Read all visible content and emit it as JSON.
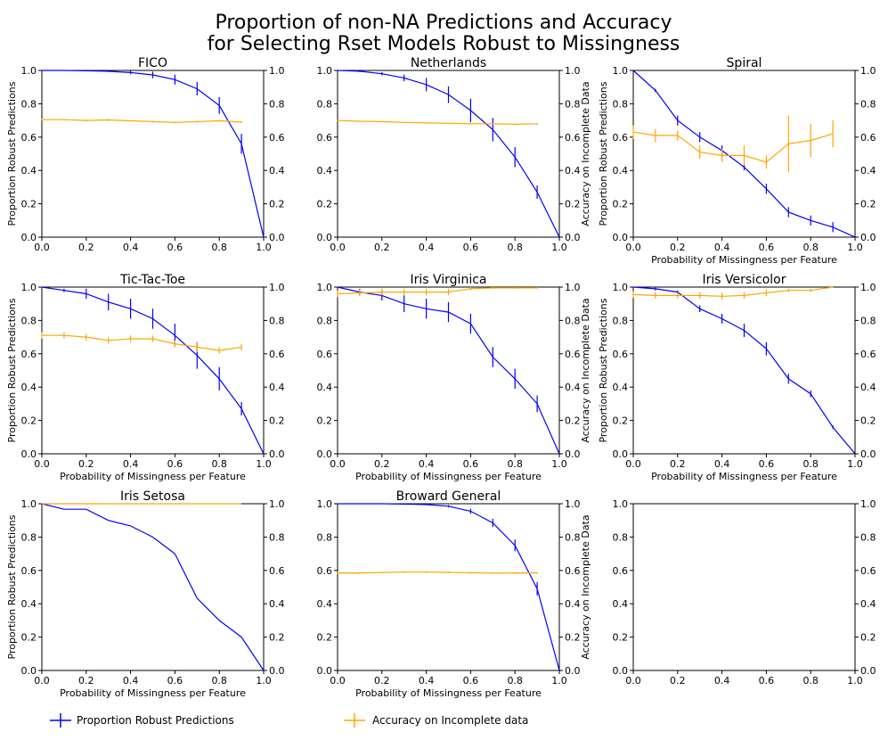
{
  "figure": {
    "title_line1": "Proportion of non-NA Predictions and Accuracy",
    "title_line2": "for Selecting Rset Models Robust to Missingness",
    "colors": {
      "robust": "#0000ff",
      "accuracy": "#ffa500"
    },
    "legend": {
      "robust_label": "Proportion Robust Predictions",
      "accuracy_label": "Accuracy on Incomplete data"
    },
    "tick_labels": [
      "0.0",
      "0.2",
      "0.4",
      "0.6",
      "0.8",
      "1.0"
    ]
  },
  "chart_data": [
    {
      "type": "line",
      "title": "FICO",
      "xlabel": "",
      "ylabel": "Proportion Robust Predictions",
      "ylabel_right": "",
      "xlim": [
        0,
        1
      ],
      "ylim": [
        0,
        1
      ],
      "series": [
        {
          "name": "Proportion Robust Predictions",
          "x": [
            0,
            0.1,
            0.2,
            0.3,
            0.4,
            0.5,
            0.6,
            0.7,
            0.8,
            0.9,
            1.0
          ],
          "y": [
            1.0,
            1.0,
            0.998,
            0.995,
            0.987,
            0.973,
            0.945,
            0.89,
            0.79,
            0.56,
            0.0
          ],
          "err": [
            0,
            0,
            0,
            0.005,
            0.01,
            0.02,
            0.03,
            0.04,
            0.05,
            0.06,
            0
          ]
        },
        {
          "name": "Accuracy on Incomplete data",
          "x": [
            0,
            0.1,
            0.2,
            0.3,
            0.4,
            0.5,
            0.6,
            0.7,
            0.8,
            0.9
          ],
          "y": [
            0.705,
            0.705,
            0.7,
            0.703,
            0.698,
            0.693,
            0.688,
            0.693,
            0.698,
            0.69
          ],
          "err": [
            0.005,
            0.005,
            0.005,
            0.007,
            0.005,
            0.005,
            0.005,
            0.005,
            0.005,
            0.005
          ]
        }
      ]
    },
    {
      "type": "line",
      "title": "Netherlands",
      "xlabel": "",
      "ylabel": "",
      "ylabel_right": "Accuracy on Incomplete Data",
      "xlim": [
        0,
        1
      ],
      "ylim": [
        0,
        1
      ],
      "series": [
        {
          "name": "Proportion Robust Predictions",
          "x": [
            0,
            0.1,
            0.2,
            0.3,
            0.4,
            0.5,
            0.6,
            0.7,
            0.8,
            0.9,
            1.0
          ],
          "y": [
            1.0,
            0.995,
            0.98,
            0.955,
            0.915,
            0.855,
            0.76,
            0.645,
            0.48,
            0.27,
            0.0
          ],
          "err": [
            0,
            0.005,
            0.01,
            0.02,
            0.04,
            0.05,
            0.07,
            0.07,
            0.06,
            0.04,
            0
          ]
        },
        {
          "name": "Accuracy on Incomplete data",
          "x": [
            0,
            0.1,
            0.2,
            0.3,
            0.4,
            0.5,
            0.6,
            0.7,
            0.8,
            0.9
          ],
          "y": [
            0.7,
            0.695,
            0.693,
            0.688,
            0.685,
            0.683,
            0.68,
            0.68,
            0.677,
            0.68
          ],
          "err": [
            0.003,
            0.003,
            0.003,
            0.003,
            0.003,
            0.003,
            0.005,
            0.005,
            0.005,
            0.005
          ]
        }
      ]
    },
    {
      "type": "line",
      "title": "Spiral",
      "xlabel": "Probability of Missingness per Feature",
      "ylabel": "Proportion Robust Predictions",
      "ylabel_right": "",
      "xlim": [
        0,
        1
      ],
      "ylim": [
        0,
        1
      ],
      "series": [
        {
          "name": "Proportion Robust Predictions",
          "x": [
            0,
            0.1,
            0.2,
            0.3,
            0.4,
            0.5,
            0.6,
            0.7,
            0.8,
            0.9,
            1.0
          ],
          "y": [
            1.0,
            0.88,
            0.7,
            0.6,
            0.52,
            0.42,
            0.29,
            0.15,
            0.1,
            0.06,
            0.0
          ],
          "err": [
            0,
            0.01,
            0.03,
            0.03,
            0.03,
            0.02,
            0.03,
            0.03,
            0.03,
            0.03,
            0
          ]
        },
        {
          "name": "Accuracy on Incomplete data",
          "x": [
            0,
            0.1,
            0.2,
            0.3,
            0.4,
            0.5,
            0.6,
            0.7,
            0.8,
            0.9
          ],
          "y": [
            0.63,
            0.61,
            0.61,
            0.51,
            0.49,
            0.49,
            0.45,
            0.56,
            0.58,
            0.62
          ],
          "err": [
            0.04,
            0.04,
            0.03,
            0.04,
            0.04,
            0.06,
            0.04,
            0.17,
            0.1,
            0.08
          ]
        }
      ]
    },
    {
      "type": "line",
      "title": "Tic-Tac-Toe",
      "xlabel": "Probability of Missingness per Feature",
      "ylabel": "Proportion Robust Predictions",
      "ylabel_right": "",
      "xlim": [
        0,
        1
      ],
      "ylim": [
        0,
        1
      ],
      "series": [
        {
          "name": "Proportion Robust Predictions",
          "x": [
            0,
            0.1,
            0.2,
            0.3,
            0.4,
            0.5,
            0.6,
            0.7,
            0.8,
            0.9,
            1.0
          ],
          "y": [
            1.0,
            0.98,
            0.96,
            0.91,
            0.87,
            0.81,
            0.71,
            0.59,
            0.45,
            0.27,
            0.0
          ],
          "err": [
            0,
            0.01,
            0.03,
            0.05,
            0.06,
            0.06,
            0.07,
            0.08,
            0.07,
            0.04,
            0
          ]
        },
        {
          "name": "Accuracy on Incomplete data",
          "x": [
            0,
            0.1,
            0.2,
            0.3,
            0.4,
            0.5,
            0.6,
            0.7,
            0.8,
            0.9
          ],
          "y": [
            0.71,
            0.71,
            0.7,
            0.68,
            0.69,
            0.69,
            0.66,
            0.64,
            0.62,
            0.64
          ],
          "err": [
            0.02,
            0.02,
            0.02,
            0.02,
            0.02,
            0.02,
            0.02,
            0.03,
            0.02,
            0.02
          ]
        }
      ]
    },
    {
      "type": "line",
      "title": "Iris Virginica",
      "xlabel": "Probability of Missingness per Feature",
      "ylabel": "",
      "ylabel_right": "Accuracy on Incomplete Data",
      "xlim": [
        0,
        1
      ],
      "ylim": [
        0,
        1
      ],
      "series": [
        {
          "name": "Proportion Robust Predictions",
          "x": [
            0,
            0.1,
            0.2,
            0.3,
            0.4,
            0.5,
            0.6,
            0.7,
            0.8,
            0.9,
            1.0
          ],
          "y": [
            1.0,
            0.97,
            0.95,
            0.9,
            0.87,
            0.85,
            0.78,
            0.58,
            0.45,
            0.3,
            0.0
          ],
          "err": [
            0,
            0.02,
            0.03,
            0.05,
            0.06,
            0.06,
            0.06,
            0.06,
            0.06,
            0.05,
            0
          ]
        },
        {
          "name": "Accuracy on Incomplete data",
          "x": [
            0,
            0.1,
            0.2,
            0.3,
            0.4,
            0.5,
            0.6,
            0.7,
            0.8,
            0.9
          ],
          "y": [
            0.96,
            0.965,
            0.97,
            0.97,
            0.97,
            0.97,
            0.99,
            0.995,
            0.995,
            0.995
          ],
          "err": [
            0.02,
            0.02,
            0.02,
            0.02,
            0.02,
            0.02,
            0.01,
            0.005,
            0.005,
            0.005
          ]
        }
      ]
    },
    {
      "type": "line",
      "title": "Iris Versicolor",
      "xlabel": "Probability of Missingness per Feature",
      "ylabel": "Proportion Robust Predictions",
      "ylabel_right": "",
      "xlim": [
        0,
        1
      ],
      "ylim": [
        0,
        1
      ],
      "series": [
        {
          "name": "Proportion Robust Predictions",
          "x": [
            0,
            0.1,
            0.2,
            0.3,
            0.4,
            0.5,
            0.6,
            0.7,
            0.8,
            0.9,
            1.0
          ],
          "y": [
            1.0,
            0.99,
            0.97,
            0.87,
            0.81,
            0.74,
            0.63,
            0.45,
            0.36,
            0.16,
            0.0
          ],
          "err": [
            0,
            0.01,
            0.01,
            0.02,
            0.03,
            0.04,
            0.04,
            0.03,
            0.02,
            0.01,
            0
          ]
        },
        {
          "name": "Accuracy on Incomplete data",
          "x": [
            0,
            0.1,
            0.2,
            0.3,
            0.4,
            0.5,
            0.6,
            0.7,
            0.8,
            0.9
          ],
          "y": [
            0.955,
            0.95,
            0.95,
            0.95,
            0.945,
            0.95,
            0.965,
            0.98,
            0.98,
            1.0
          ],
          "err": [
            0.02,
            0.02,
            0.02,
            0.02,
            0.02,
            0.02,
            0.02,
            0.01,
            0.01,
            0.005
          ]
        }
      ]
    },
    {
      "type": "line",
      "title": "Iris Setosa",
      "xlabel": "Probability of Missingness per Feature",
      "ylabel": "Proportion Robust Predictions",
      "ylabel_right": "",
      "xlim": [
        0,
        1
      ],
      "ylim": [
        0,
        1
      ],
      "series": [
        {
          "name": "Proportion Robust Predictions",
          "x": [
            0,
            0.1,
            0.2,
            0.3,
            0.4,
            0.5,
            0.6,
            0.7,
            0.8,
            0.9,
            1.0
          ],
          "y": [
            1.0,
            0.967,
            0.967,
            0.9,
            0.867,
            0.8,
            0.7,
            0.433,
            0.3,
            0.2,
            0.0
          ],
          "err": [
            0,
            0,
            0,
            0,
            0,
            0,
            0,
            0,
            0,
            0,
            0
          ]
        },
        {
          "name": "Accuracy on Incomplete data",
          "x": [
            0,
            0.1,
            0.2,
            0.3,
            0.4,
            0.5,
            0.6,
            0.7,
            0.8,
            0.9
          ],
          "y": [
            1.0,
            1.0,
            1.0,
            1.0,
            1.0,
            1.0,
            1.0,
            1.0,
            1.0,
            1.0
          ],
          "err": [
            0,
            0,
            0,
            0,
            0,
            0,
            0,
            0,
            0,
            0
          ]
        }
      ]
    },
    {
      "type": "line",
      "title": "Broward General",
      "xlabel": "Probability of Missingness per Feature",
      "ylabel": "",
      "ylabel_right": "Accuracy on Incomplete Data",
      "xlim": [
        0,
        1
      ],
      "ylim": [
        0,
        1
      ],
      "series": [
        {
          "name": "Proportion Robust Predictions",
          "x": [
            0,
            0.1,
            0.2,
            0.3,
            0.4,
            0.5,
            0.6,
            0.7,
            0.8,
            0.9,
            1.0
          ],
          "y": [
            1.0,
            1.0,
            1.0,
            0.998,
            0.995,
            0.985,
            0.955,
            0.885,
            0.75,
            0.49,
            0.0
          ],
          "err": [
            0,
            0,
            0,
            0,
            0.003,
            0.007,
            0.015,
            0.025,
            0.035,
            0.04,
            0
          ]
        },
        {
          "name": "Accuracy on Incomplete data",
          "x": [
            0,
            0.1,
            0.2,
            0.3,
            0.4,
            0.5,
            0.6,
            0.7,
            0.8,
            0.9
          ],
          "y": [
            0.585,
            0.585,
            0.587,
            0.59,
            0.59,
            0.588,
            0.586,
            0.584,
            0.585,
            0.585
          ],
          "err": [
            0.005,
            0.005,
            0.005,
            0.005,
            0.005,
            0.005,
            0.005,
            0.005,
            0.005,
            0.005
          ]
        }
      ]
    },
    {
      "type": "line",
      "title": "",
      "xlabel": "",
      "ylabel": "",
      "ylabel_right": "",
      "xlim": [
        0,
        1
      ],
      "ylim": [
        0,
        1
      ],
      "series": []
    }
  ]
}
